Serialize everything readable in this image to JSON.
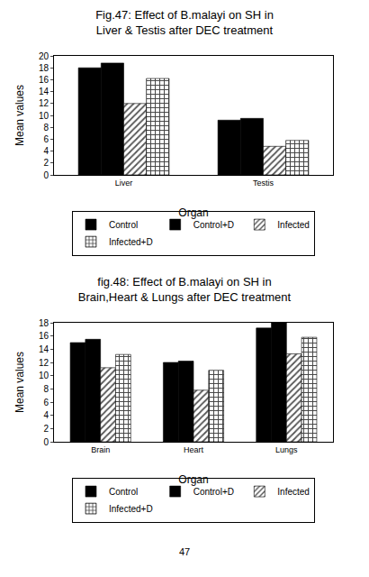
{
  "chart_data": [
    {
      "type": "bar",
      "title": "Fig.47: Effect of B.malayi on SH in\nLiver & Testis after DEC treatment",
      "x_label": "Organ",
      "y_label": "Mean values",
      "categories": [
        "Liver",
        "Testis"
      ],
      "series": [
        {
          "name": "Control",
          "color": "#000000",
          "values": [
            18,
            9.2
          ]
        },
        {
          "name": "Control+D",
          "color": "#000000",
          "values": [
            18.8,
            9.5
          ]
        },
        {
          "name": "Infected",
          "color": "#555555",
          "marker": "hatch",
          "values": [
            12,
            4.8
          ]
        },
        {
          "name": "Infected+D",
          "color": "#444444",
          "marker": "grid",
          "values": [
            16.2,
            5.8
          ]
        }
      ],
      "ylim": [
        0,
        20
      ],
      "yticks": [
        0,
        2,
        4,
        6,
        8,
        10,
        12,
        14,
        16,
        18,
        20
      ],
      "grid": false,
      "legend": "bottom"
    },
    {
      "type": "bar",
      "title": "fig.48: Effect of B.malayi on SH in\nBrain,Heart & Lungs after DEC treatment",
      "x_label": "Organ",
      "y_label": "Mean values",
      "categories": [
        "Brain",
        "Heart",
        "Lungs"
      ],
      "series": [
        {
          "name": "Control",
          "color": "#000000",
          "values": [
            15,
            12,
            17.2
          ]
        },
        {
          "name": "Control+D",
          "color": "#000000",
          "values": [
            15.5,
            12.2,
            18
          ]
        },
        {
          "name": "Infected",
          "color": "#555555",
          "marker": "hatch",
          "values": [
            11.2,
            7.8,
            13.3
          ]
        },
        {
          "name": "Infected+D",
          "color": "#444444",
          "marker": "grid",
          "values": [
            13.2,
            10.8,
            15.8
          ]
        }
      ],
      "ylim": [
        0,
        18
      ],
      "yticks": [
        0,
        2,
        4,
        6,
        8,
        10,
        12,
        14,
        16,
        18
      ],
      "grid": false,
      "legend": "bottom"
    }
  ],
  "page": "47"
}
